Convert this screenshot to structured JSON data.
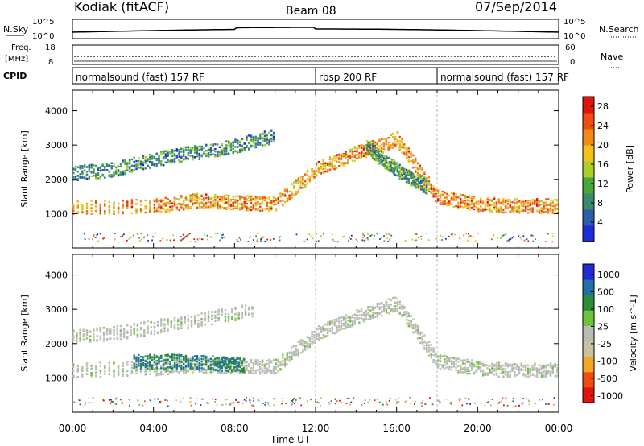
{
  "header": {
    "station": "Kodiak (fitACF)",
    "beam": "Beam 08",
    "date": "07/Sep/2014"
  },
  "nsky_panel": {
    "left_label": "N.Sky",
    "right_label": "N.Search",
    "left_ticks": [
      "10^5",
      "10^0"
    ],
    "right_ticks": [
      "10^5",
      "10^0"
    ]
  },
  "freq_panel": {
    "left_label_1": "Freq.",
    "left_label_2": "[MHz]",
    "right_label": "Nave",
    "left_ticks": [
      "18",
      "8"
    ],
    "right_ticks": [
      "60",
      "0"
    ]
  },
  "cpid": {
    "label": "CPID",
    "segments": [
      {
        "text": "normalsound (fast) 157 RF",
        "start_hour": 0
      },
      {
        "text": "rbsp 200 RF",
        "start_hour": 12
      },
      {
        "text": "normalsound (fast) 157 RF",
        "start_hour": 18
      }
    ]
  },
  "colors": {
    "power": [
      "#1f2bd6",
      "#2a5ea8",
      "#3b8a6a",
      "#4aa53b",
      "#a9cf2a",
      "#f2c21b",
      "#f28a14",
      "#f04e10",
      "#e0140c"
    ],
    "velocity": [
      "#e0140c",
      "#f04e10",
      "#f5a623",
      "#c9c2a2",
      "#b9bbb5",
      "#6fc23c",
      "#2e8b3a",
      "#1f6fa8",
      "#1f2bd6"
    ]
  },
  "chart_data": [
    {
      "type": "heatmap",
      "title": "",
      "xlabel": "Time UT",
      "ylabel": "Slant Range [km]",
      "xlim": [
        0,
        24
      ],
      "ylim": [
        0,
        4600
      ],
      "x_ticks": [
        "00:00",
        "04:00",
        "08:00",
        "12:00",
        "16:00",
        "20:00",
        "00:00"
      ],
      "y_ticks": [
        1000,
        2000,
        3000,
        4000
      ],
      "colorbar": {
        "label": "Power [dB]",
        "ticks": [
          4,
          8,
          12,
          16,
          20,
          24,
          28
        ],
        "range": [
          0,
          30
        ]
      },
      "bands": [
        {
          "x": [
            0,
            4,
            6,
            8,
            10,
            12,
            14,
            16,
            18,
            20,
            22,
            24
          ],
          "y": [
            1200,
            1250,
            1400,
            1350,
            1300,
            2300,
            2800,
            3200,
            1500,
            1300,
            1250,
            1250
          ],
          "level": 22
        },
        {
          "x": [
            0,
            2,
            4,
            6,
            8,
            10
          ],
          "y": [
            2200,
            2300,
            2600,
            2800,
            3000,
            3300
          ],
          "level": 8
        },
        {
          "x": [
            14.5,
            15.5,
            16.5,
            17.5
          ],
          "y": [
            3000,
            2500,
            2100,
            1800
          ],
          "level": 10
        }
      ]
    },
    {
      "type": "heatmap",
      "title": "",
      "xlabel": "Time UT",
      "ylabel": "Slant Range [km]",
      "xlim": [
        0,
        24
      ],
      "ylim": [
        0,
        4600
      ],
      "x_ticks": [
        "00:00",
        "04:00",
        "08:00",
        "12:00",
        "16:00",
        "20:00",
        "00:00"
      ],
      "y_ticks": [
        1000,
        2000,
        3000,
        4000
      ],
      "colorbar": {
        "label": "Velocity [m s^-1]",
        "ticks": [
          "1000",
          "500",
          "100",
          "25",
          "-25",
          "-100",
          "-500",
          "-1000"
        ]
      },
      "bands": [
        {
          "x": [
            0,
            4,
            6,
            8,
            10,
            12,
            14,
            16,
            18,
            20,
            22,
            24
          ],
          "y": [
            1250,
            1300,
            1400,
            1350,
            1350,
            2300,
            2800,
            3200,
            1500,
            1300,
            1250,
            1250
          ],
          "velocity": 0
        },
        {
          "x": [
            3,
            5,
            7,
            8.5
          ],
          "y": [
            1500,
            1500,
            1450,
            1400
          ],
          "velocity": 300
        },
        {
          "x": [
            0,
            3,
            6,
            9
          ],
          "y": [
            2200,
            2400,
            2700,
            3000
          ],
          "velocity": 0
        }
      ]
    }
  ]
}
